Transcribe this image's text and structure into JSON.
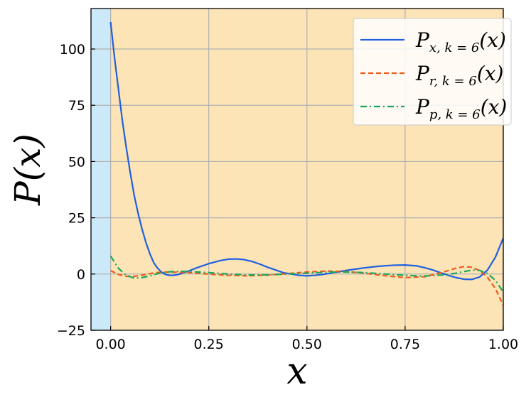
{
  "chart_data": {
    "type": "line",
    "title": "",
    "xlabel": "x",
    "ylabel": "P(x)",
    "xlim": [
      -0.05,
      1.0
    ],
    "ylim": [
      -25,
      118
    ],
    "xticks": [
      0.0,
      0.25,
      0.5,
      0.75,
      1.0
    ],
    "xtick_labels": [
      "0.00",
      "0.25",
      "0.50",
      "0.75",
      "1.00"
    ],
    "yticks": [
      -25,
      0,
      25,
      50,
      75,
      100
    ],
    "ytick_labels": [
      "−25",
      "0",
      "25",
      "50",
      "75",
      "100"
    ],
    "grid": true,
    "legend_position": "top-right",
    "regions": [
      {
        "x_start": -0.05,
        "x_end": 0.0,
        "color": "#cce9f9"
      },
      {
        "x_start": 0.0,
        "x_end": 1.0,
        "color": "#fce4b6"
      }
    ],
    "series": [
      {
        "name": "P_{x,k=6}(x)",
        "legend": {
          "main": "P",
          "sub": "x, k = 6",
          "tail": "(x)"
        },
        "color": "#1f5fe0",
        "style": "solid",
        "x": [
          0.0,
          0.01,
          0.02,
          0.03,
          0.04,
          0.05,
          0.06,
          0.07,
          0.08,
          0.09,
          0.1,
          0.11,
          0.12,
          0.13,
          0.14,
          0.15,
          0.16,
          0.17,
          0.18,
          0.2,
          0.22,
          0.25,
          0.28,
          0.3,
          0.32,
          0.34,
          0.36,
          0.38,
          0.4,
          0.44,
          0.48,
          0.5,
          0.52,
          0.54,
          0.56,
          0.6,
          0.64,
          0.68,
          0.72,
          0.75,
          0.78,
          0.8,
          0.82,
          0.84,
          0.86,
          0.88,
          0.9,
          0.92,
          0.94,
          0.96,
          0.98,
          1.0
        ],
        "y": [
          112,
          96,
          82,
          68,
          56,
          45,
          35,
          27,
          20,
          14,
          9,
          5,
          2.5,
          0.8,
          -0.2,
          -0.6,
          -0.6,
          -0.3,
          0.2,
          1.4,
          2.8,
          4.6,
          6.0,
          6.6,
          6.7,
          6.4,
          5.6,
          4.4,
          3.0,
          0.6,
          -0.6,
          -0.8,
          -0.6,
          -0.2,
          0.4,
          1.6,
          2.6,
          3.4,
          3.9,
          4.0,
          3.6,
          2.8,
          1.8,
          0.6,
          -0.6,
          -1.6,
          -2.3,
          -2.4,
          -1.3,
          1.8,
          7.5,
          16
        ]
      },
      {
        "name": "P_{r,k=6}(x)",
        "legend": {
          "main": "P",
          "sub": "r, k = 6",
          "tail": "(x)"
        },
        "color": "#f25a1a",
        "style": "dashed",
        "x": [
          0.0,
          0.02,
          0.04,
          0.06,
          0.08,
          0.1,
          0.12,
          0.15,
          0.2,
          0.25,
          0.3,
          0.35,
          0.4,
          0.45,
          0.5,
          0.55,
          0.6,
          0.65,
          0.7,
          0.75,
          0.8,
          0.84,
          0.88,
          0.9,
          0.92,
          0.94,
          0.96,
          0.98,
          1.0
        ],
        "y": [
          1.5,
          -0.2,
          -1.0,
          -1.0,
          -0.5,
          0.2,
          0.7,
          0.9,
          0.6,
          0.0,
          -0.6,
          -0.8,
          -0.5,
          0.2,
          0.9,
          1.3,
          1.1,
          0.3,
          -0.8,
          -1.6,
          -1.2,
          0.5,
          2.6,
          3.3,
          3.0,
          1.5,
          -1.5,
          -6.5,
          -14
        ]
      },
      {
        "name": "P_{p,k=6}(x)",
        "legend": {
          "main": "P",
          "sub": "p, k = 6",
          "tail": "(x)"
        },
        "color": "#1aa85a",
        "style": "dashdot",
        "x": [
          0.0,
          0.02,
          0.04,
          0.06,
          0.08,
          0.1,
          0.12,
          0.15,
          0.18,
          0.2,
          0.25,
          0.3,
          0.35,
          0.4,
          0.45,
          0.5,
          0.55,
          0.6,
          0.65,
          0.7,
          0.75,
          0.8,
          0.85,
          0.88,
          0.9,
          0.92,
          0.94,
          0.96,
          0.98,
          1.0
        ],
        "y": [
          8.0,
          2.5,
          -0.6,
          -1.8,
          -1.6,
          -0.8,
          0.2,
          1.0,
          1.2,
          1.1,
          0.6,
          0.0,
          -0.4,
          -0.4,
          0.0,
          0.4,
          0.8,
          0.9,
          0.6,
          0.0,
          -0.6,
          -0.9,
          -0.4,
          0.4,
          1.1,
          1.7,
          1.6,
          0.2,
          -2.8,
          -8.0
        ]
      }
    ]
  }
}
